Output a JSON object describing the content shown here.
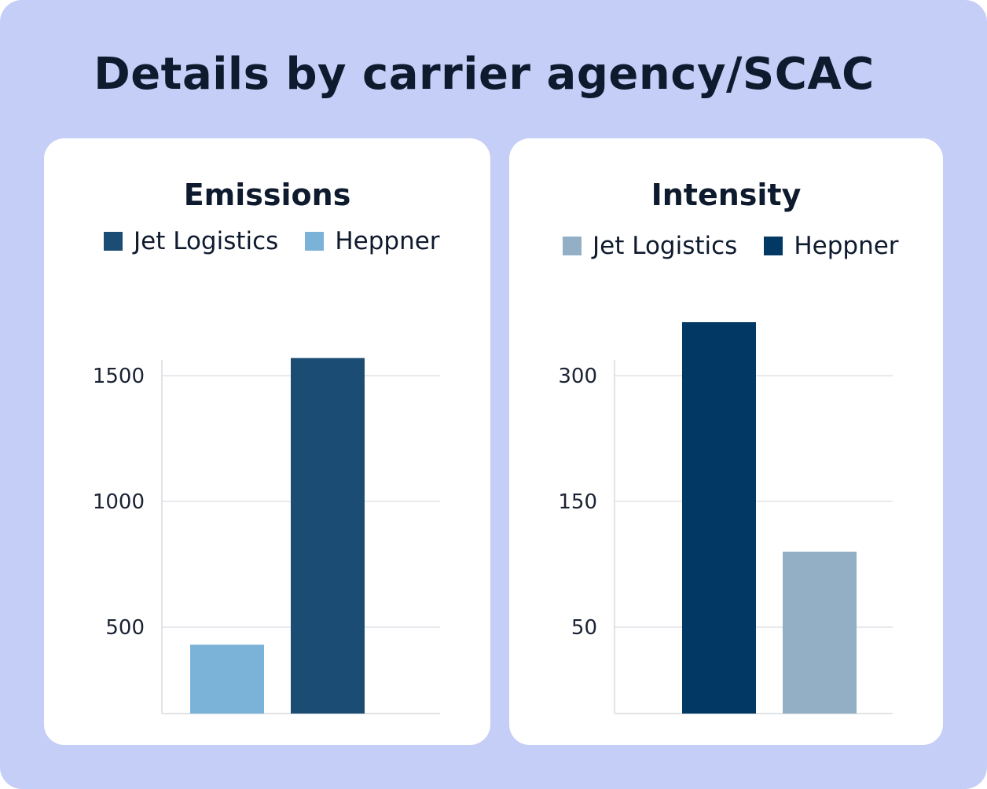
{
  "title": "Details by carrier agency/SCAC",
  "chart_data": [
    {
      "type": "bar",
      "title": "Emissions",
      "categories": [
        "Heppner",
        "Jet Logistics"
      ],
      "series": [
        {
          "name": "Heppner",
          "color": "#7bb3d8",
          "values": [
            430,
            null
          ]
        },
        {
          "name": "Jet Logistics",
          "color": "#1b4d74",
          "values": [
            null,
            1570
          ]
        }
      ],
      "legend": [
        {
          "label": "Jet Logistics",
          "color": "#1b4d74"
        },
        {
          "label": "Heppner",
          "color": "#7bb3d8"
        }
      ],
      "legend_position": "top-center",
      "y_ticks": [
        "500",
        "1000",
        "1500"
      ],
      "ylim": [
        160,
        1570
      ],
      "grid": true
    },
    {
      "type": "bar",
      "title": "Intensity",
      "categories": [
        "Heppner",
        "Jet Logistics"
      ],
      "series": [
        {
          "name": "Heppner",
          "color": "#023864",
          "values": [
            360,
            null
          ]
        },
        {
          "name": "Jet Logistics",
          "color": "#92afc5",
          "values": [
            null,
            110
          ]
        }
      ],
      "legend": [
        {
          "label": "Jet Logistics",
          "color": "#92afc5"
        },
        {
          "label": "Heppner",
          "color": "#023864"
        }
      ],
      "legend_position": "top-center",
      "y_ticks": [
        "50",
        "150",
        "300"
      ],
      "grid": true,
      "note": "axis spacing is non-uniform as drawn"
    }
  ]
}
